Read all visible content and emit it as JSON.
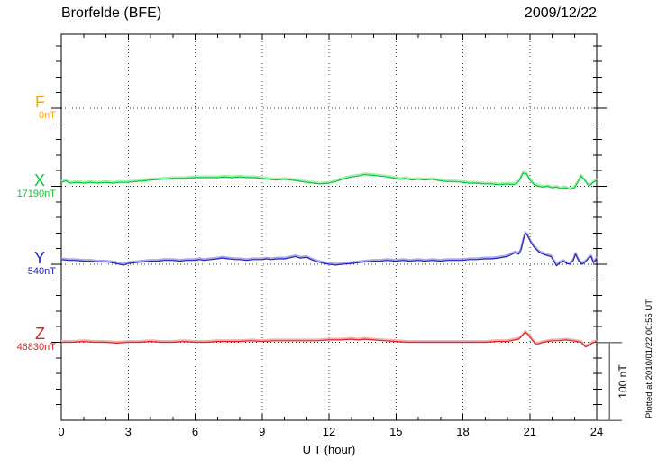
{
  "header": {
    "title": "Brorfelde (BFE)",
    "date": "2009/12/22"
  },
  "x_axis": {
    "label": "U T (hour)"
  },
  "scale_bar": {
    "label": "100 nT"
  },
  "plot_note": "Plotted at 2010/01/22 00:55 UT",
  "chart_data": {
    "type": "line",
    "title": "Brorfelde (BFE)",
    "date": "2009/12/22",
    "xlabel": "U T (hour)",
    "x_range_hours": [
      0,
      24
    ],
    "x_ticks": [
      0,
      3,
      6,
      9,
      12,
      15,
      18,
      21,
      24
    ],
    "x_minor_tick_step_hours": 1,
    "y_division_nT": 100,
    "y_minor_tick_nT": 20,
    "grid": "dotted vertical lines every 3 hours; dotted horizontal line at each channel baseline",
    "points_format": "[hour_UT, delta_nT_from_baseline]",
    "series": [
      {
        "name": "F",
        "baseline_label": "0nT",
        "color": "#FFA500",
        "light_color": "#FFD699",
        "points": []
      },
      {
        "name": "X",
        "baseline_label": "17190nT",
        "color": "#00CC33",
        "light_color": "#A8EDB2",
        "points": [
          [
            0,
            5
          ],
          [
            0.2,
            7
          ],
          [
            0.4,
            4
          ],
          [
            0.7,
            5
          ],
          [
            1,
            4
          ],
          [
            1.3,
            5
          ],
          [
            1.6,
            4
          ],
          [
            2,
            5
          ],
          [
            2.3,
            4
          ],
          [
            2.6,
            5
          ],
          [
            3,
            5
          ],
          [
            3.3,
            6
          ],
          [
            3.7,
            7
          ],
          [
            4,
            8
          ],
          [
            4.5,
            9
          ],
          [
            5,
            10
          ],
          [
            5.5,
            10
          ],
          [
            6,
            11
          ],
          [
            6.5,
            11
          ],
          [
            7,
            11
          ],
          [
            7.3,
            12
          ],
          [
            7.6,
            11
          ],
          [
            8,
            12
          ],
          [
            8.4,
            11
          ],
          [
            8.7,
            11
          ],
          [
            9,
            10
          ],
          [
            9.3,
            9
          ],
          [
            9.6,
            8
          ],
          [
            10,
            9
          ],
          [
            10.3,
            8
          ],
          [
            10.6,
            7
          ],
          [
            11,
            5
          ],
          [
            11.3,
            4
          ],
          [
            11.6,
            3
          ],
          [
            12,
            4
          ],
          [
            12.3,
            6
          ],
          [
            12.6,
            9
          ],
          [
            13,
            12
          ],
          [
            13.3,
            13
          ],
          [
            13.6,
            15
          ],
          [
            14,
            14
          ],
          [
            14.3,
            13
          ],
          [
            14.6,
            12
          ],
          [
            15,
            10
          ],
          [
            15.2,
            9
          ],
          [
            15.4,
            10
          ],
          [
            15.7,
            8
          ],
          [
            16,
            9
          ],
          [
            16.3,
            8
          ],
          [
            16.6,
            9
          ],
          [
            17,
            7
          ],
          [
            17.3,
            6
          ],
          [
            17.6,
            6
          ],
          [
            18,
            5
          ],
          [
            18.3,
            4
          ],
          [
            18.6,
            4
          ],
          [
            19,
            3
          ],
          [
            19.3,
            3
          ],
          [
            19.6,
            2
          ],
          [
            20,
            3
          ],
          [
            20.2,
            2
          ],
          [
            20.4,
            3
          ],
          [
            20.55,
            8
          ],
          [
            20.7,
            17
          ],
          [
            20.85,
            16
          ],
          [
            21,
            8
          ],
          [
            21.2,
            2
          ],
          [
            21.4,
            0
          ],
          [
            21.6,
            -1
          ],
          [
            21.8,
            0
          ],
          [
            22,
            -2
          ],
          [
            22.2,
            -1
          ],
          [
            22.4,
            -3
          ],
          [
            22.6,
            -2
          ],
          [
            22.8,
            -4
          ],
          [
            23,
            -2
          ],
          [
            23.15,
            5
          ],
          [
            23.3,
            13
          ],
          [
            23.45,
            8
          ],
          [
            23.6,
            2
          ],
          [
            23.7,
            1
          ],
          [
            23.85,
            5
          ],
          [
            24,
            8
          ]
        ]
      },
      {
        "name": "Y",
        "baseline_label": "540nT",
        "color": "#2222CC",
        "light_color": "#AAAAE0",
        "points": [
          [
            0,
            6
          ],
          [
            0.3,
            5
          ],
          [
            0.6,
            5
          ],
          [
            1,
            4
          ],
          [
            1.3,
            4
          ],
          [
            1.6,
            3
          ],
          [
            2,
            3
          ],
          [
            2.3,
            2
          ],
          [
            2.6,
            0
          ],
          [
            2.8,
            -1
          ],
          [
            3,
            1
          ],
          [
            3.3,
            2
          ],
          [
            3.6,
            3
          ],
          [
            4,
            4
          ],
          [
            4.3,
            4
          ],
          [
            4.6,
            5
          ],
          [
            5,
            5
          ],
          [
            5.3,
            4
          ],
          [
            5.6,
            5
          ],
          [
            6,
            5
          ],
          [
            6.2,
            6
          ],
          [
            6.4,
            5
          ],
          [
            6.7,
            6
          ],
          [
            7,
            7
          ],
          [
            7.2,
            8
          ],
          [
            7.5,
            7
          ],
          [
            7.8,
            6
          ],
          [
            8,
            6
          ],
          [
            8.3,
            5
          ],
          [
            8.6,
            6
          ],
          [
            9,
            6
          ],
          [
            9.2,
            7
          ],
          [
            9.4,
            6
          ],
          [
            9.7,
            7
          ],
          [
            10,
            7
          ],
          [
            10.2,
            8
          ],
          [
            10.5,
            10
          ],
          [
            10.7,
            8
          ],
          [
            11,
            9
          ],
          [
            11.2,
            6
          ],
          [
            11.5,
            3
          ],
          [
            11.8,
            1
          ],
          [
            12,
            0
          ],
          [
            12.3,
            -1
          ],
          [
            12.6,
            0
          ],
          [
            13,
            1
          ],
          [
            13.3,
            2
          ],
          [
            13.6,
            3
          ],
          [
            14,
            4
          ],
          [
            14.3,
            4
          ],
          [
            14.6,
            5
          ],
          [
            15,
            4
          ],
          [
            15.3,
            5
          ],
          [
            15.6,
            4
          ],
          [
            16,
            5
          ],
          [
            16.3,
            4
          ],
          [
            16.6,
            5
          ],
          [
            17,
            4
          ],
          [
            17.3,
            5
          ],
          [
            17.6,
            5
          ],
          [
            18,
            5
          ],
          [
            18.3,
            6
          ],
          [
            18.6,
            6
          ],
          [
            19,
            7
          ],
          [
            19.3,
            7
          ],
          [
            19.6,
            8
          ],
          [
            20,
            10
          ],
          [
            20.2,
            13
          ],
          [
            20.35,
            15
          ],
          [
            20.5,
            13
          ],
          [
            20.6,
            18
          ],
          [
            20.7,
            30
          ],
          [
            20.8,
            40
          ],
          [
            20.9,
            37
          ],
          [
            21.05,
            28
          ],
          [
            21.2,
            22
          ],
          [
            21.4,
            16
          ],
          [
            21.6,
            13
          ],
          [
            21.8,
            11
          ],
          [
            21.95,
            10
          ],
          [
            22.1,
            3
          ],
          [
            22.2,
            -2
          ],
          [
            22.35,
            2
          ],
          [
            22.5,
            4
          ],
          [
            22.65,
            1
          ],
          [
            22.8,
            0
          ],
          [
            22.95,
            5
          ],
          [
            23.05,
            13
          ],
          [
            23.2,
            4
          ],
          [
            23.35,
            0
          ],
          [
            23.5,
            3
          ],
          [
            23.65,
            8
          ],
          [
            23.75,
            10
          ],
          [
            23.85,
            2
          ],
          [
            23.95,
            5
          ],
          [
            24,
            8
          ]
        ]
      },
      {
        "name": "Z",
        "baseline_label": "46830nT",
        "color": "#DD2222",
        "light_color": "#F5AFAF",
        "points": [
          [
            0,
            0
          ],
          [
            0.5,
            0
          ],
          [
            1,
            1
          ],
          [
            1.5,
            0
          ],
          [
            2,
            0
          ],
          [
            2.5,
            -1
          ],
          [
            3,
            0
          ],
          [
            3.5,
            0
          ],
          [
            4,
            1
          ],
          [
            4.5,
            0
          ],
          [
            5,
            0
          ],
          [
            5.5,
            1
          ],
          [
            6,
            0
          ],
          [
            6.5,
            0
          ],
          [
            7,
            1
          ],
          [
            7.5,
            1
          ],
          [
            8,
            1
          ],
          [
            8.5,
            2
          ],
          [
            9,
            1
          ],
          [
            9.5,
            2
          ],
          [
            10,
            2
          ],
          [
            10.5,
            2
          ],
          [
            11,
            2
          ],
          [
            11.5,
            2
          ],
          [
            12,
            3
          ],
          [
            12.5,
            3
          ],
          [
            13,
            4
          ],
          [
            13.3,
            3
          ],
          [
            13.6,
            4
          ],
          [
            14,
            3
          ],
          [
            14.5,
            2
          ],
          [
            15,
            1
          ],
          [
            15.5,
            0
          ],
          [
            16,
            0
          ],
          [
            16.5,
            0
          ],
          [
            17,
            0
          ],
          [
            17.5,
            0
          ],
          [
            18,
            0
          ],
          [
            18.5,
            0
          ],
          [
            19,
            0
          ],
          [
            19.5,
            1
          ],
          [
            20,
            1
          ],
          [
            20.3,
            3
          ],
          [
            20.5,
            4
          ],
          [
            20.65,
            8
          ],
          [
            20.8,
            13
          ],
          [
            20.95,
            9
          ],
          [
            21.1,
            3
          ],
          [
            21.25,
            -2
          ],
          [
            21.4,
            -2
          ],
          [
            21.6,
            0
          ],
          [
            21.8,
            1
          ],
          [
            22,
            2
          ],
          [
            22.3,
            2
          ],
          [
            22.6,
            3
          ],
          [
            22.9,
            2
          ],
          [
            23.1,
            1
          ],
          [
            23.3,
            0
          ],
          [
            23.5,
            -6
          ],
          [
            23.65,
            -4
          ],
          [
            23.8,
            -1
          ],
          [
            24,
            1
          ]
        ]
      }
    ]
  }
}
